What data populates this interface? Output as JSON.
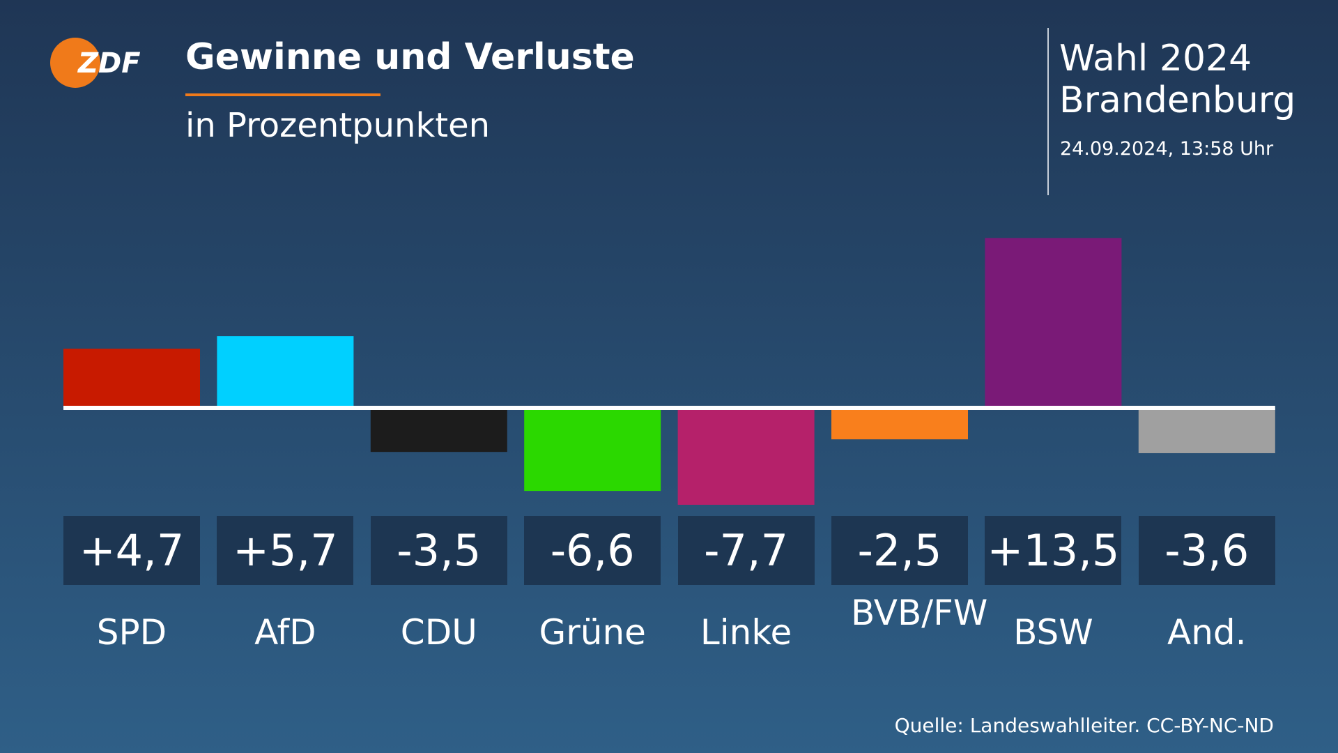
{
  "logo": "ZDF",
  "chart_data": {
    "type": "bar",
    "title": "Gewinne und Verluste",
    "subtitle": "in Prozentpunkten",
    "header": {
      "line1": "Wahl 2024",
      "line2": "Brandenburg",
      "date": "24.09.2024, 13:58 Uhr"
    },
    "source": "Quelle: Landeswahlleiter. CC-BY-NC-ND",
    "categories": [
      "SPD",
      "AfD",
      "CDU",
      "Grüne",
      "Linke",
      "BVB/FW",
      "BSW",
      "And."
    ],
    "values": [
      4.7,
      5.7,
      -3.5,
      -6.6,
      -7.7,
      -2.5,
      13.5,
      -3.6
    ],
    "value_labels": [
      "+4,7",
      "+5,7",
      "-3,5",
      "-6,6",
      "-7,7",
      "-2,5",
      "+13,5",
      "-3,6"
    ],
    "colors": [
      "#c81a00",
      "#00d0ff",
      "#1c1c1c",
      "#2bd800",
      "#b5216a",
      "#f97f1c",
      "#7a1a77",
      "#a0a0a0"
    ]
  }
}
